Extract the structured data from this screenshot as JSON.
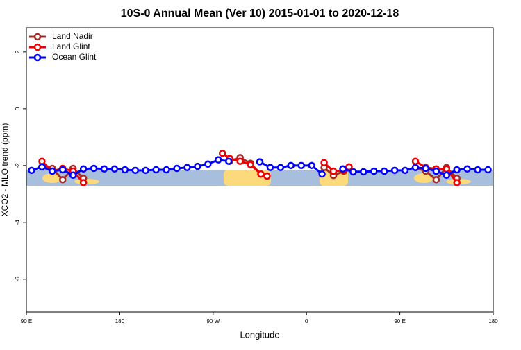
{
  "chart_data": {
    "type": "line",
    "title": "10S-0 Annual Mean (Ver 10)   2015-01-01 to 2020-12-18",
    "x_label": "Longitude",
    "y_label": "XCO2 - MLO trend (ppm)",
    "xlim": [
      90,
      540
    ],
    "ylim": [
      -7.15,
      2.85
    ],
    "xticks": [
      {
        "value": 90,
        "label": "90 E"
      },
      180,
      {
        "value": 270,
        "label": "90 W"
      },
      {
        "value": 360,
        "label": "0"
      },
      {
        "value": 450,
        "label": "90 E"
      },
      {
        "value": 540,
        "label": "180"
      }
    ],
    "yticks": [
      2,
      0,
      -2,
      -4,
      -6
    ],
    "legend": "top-left",
    "series": [
      {
        "name": "Land Nadir",
        "color": "#a52a2a",
        "x": [
          105,
          115,
          125,
          135,
          145,
          200,
          286,
          296,
          306,
          316,
          350,
          377,
          386,
          396,
          401,
          430,
          465,
          475,
          485,
          495,
          505
        ],
        "values": [
          -2.05,
          -2.1,
          -2.5,
          -2.1,
          -2.45,
          null,
          -1.85,
          -1.72,
          -1.92,
          -2.3,
          null,
          -2.07,
          -2.35,
          -2.2,
          -2.05,
          null,
          -2.07,
          -2.2,
          -2.5,
          -2.07,
          -2.45
        ]
      },
      {
        "name": "Land Glint",
        "color": "#ee0000",
        "x": [
          105,
          115,
          125,
          135,
          145,
          200,
          279,
          286,
          296,
          306,
          316,
          322,
          350,
          377,
          386,
          396,
          401,
          430,
          465,
          475,
          485,
          495,
          505
        ],
        "values": [
          -1.85,
          -2.2,
          -2.1,
          -2.2,
          -2.6,
          null,
          -1.57,
          -1.75,
          -1.85,
          -1.97,
          -2.3,
          -2.37,
          null,
          -1.9,
          -2.2,
          -2.17,
          -2.05,
          null,
          -1.85,
          -2.07,
          -2.12,
          -2.12,
          -2.6
        ]
      },
      {
        "name": "Ocean Glint",
        "color": "#0000ff",
        "x": [
          95,
          105,
          115,
          125,
          135,
          145,
          155,
          165,
          175,
          185,
          195,
          205,
          215,
          225,
          235,
          245,
          255,
          265,
          275,
          285,
          300,
          315,
          325,
          335,
          345,
          355,
          365,
          375,
          385,
          395,
          405,
          415,
          425,
          435,
          445,
          455,
          465,
          475,
          485,
          495,
          505,
          515,
          525,
          535
        ],
        "values": [
          -2.17,
          -2.05,
          -2.2,
          -2.15,
          -2.34,
          -2.12,
          -2.1,
          -2.12,
          -2.12,
          -2.15,
          -2.17,
          -2.17,
          -2.15,
          -2.15,
          -2.1,
          -2.07,
          -2.03,
          -1.95,
          -1.8,
          -1.85,
          null,
          -1.87,
          -2.07,
          -2.07,
          -2.0,
          -2.0,
          -2.0,
          -2.3,
          null,
          -2.12,
          -2.22,
          -2.22,
          -2.2,
          -2.2,
          -2.17,
          -2.17,
          -2.07,
          -2.1,
          -2.2,
          -2.34,
          -2.15,
          -2.12,
          -2.15,
          -2.15
        ]
      }
    ]
  }
}
